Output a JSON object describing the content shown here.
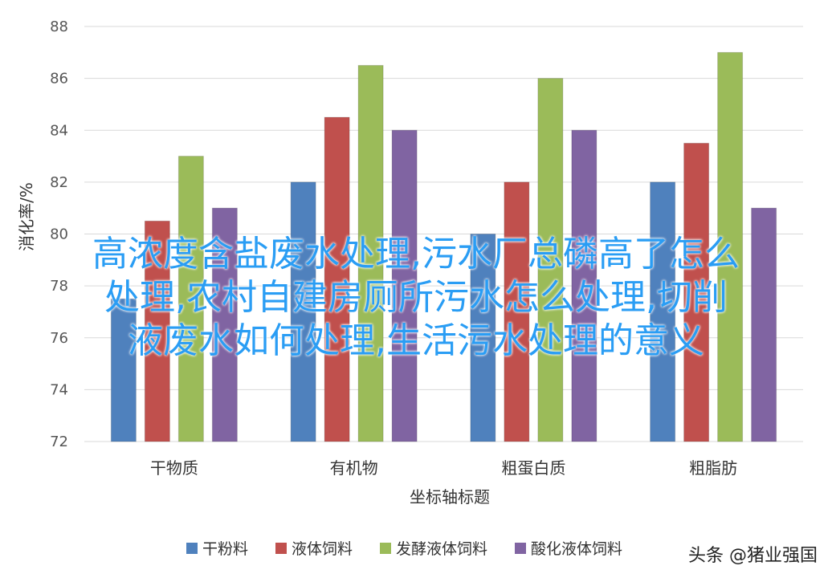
{
  "chart_data": {
    "type": "bar",
    "categories": [
      "干物质",
      "有机物",
      "粗蛋白质",
      "粗脂肪"
    ],
    "series": [
      {
        "name": "干粉料",
        "color": "#4f81bd",
        "values": [
          77.5,
          82,
          80,
          82
        ]
      },
      {
        "name": "液体饲料",
        "color": "#c0504d",
        "values": [
          80.5,
          84.5,
          82,
          83.5
        ]
      },
      {
        "name": "发酵液体饲料",
        "color": "#9bbb59",
        "values": [
          83,
          86.5,
          86,
          87
        ]
      },
      {
        "name": "酸化液体饲料",
        "color": "#8064a2",
        "values": [
          81,
          84,
          84,
          81
        ]
      }
    ],
    "ylim": [
      72,
      88
    ],
    "yticks": [
      72,
      74,
      76,
      78,
      80,
      82,
      84,
      86,
      88
    ],
    "xlabel": "坐标轴标题",
    "ylabel": "消化率/%",
    "grid": true,
    "legend": "bottom"
  },
  "overlay_lines": [
    "高浓度含盐废水处理,污水厂总磷高了怎么",
    "处理,农村自建房厕所污水怎么处理,切削",
    "液废水如何处理,生活污水处理的意义"
  ],
  "watermark": "头条 @猪业强国"
}
